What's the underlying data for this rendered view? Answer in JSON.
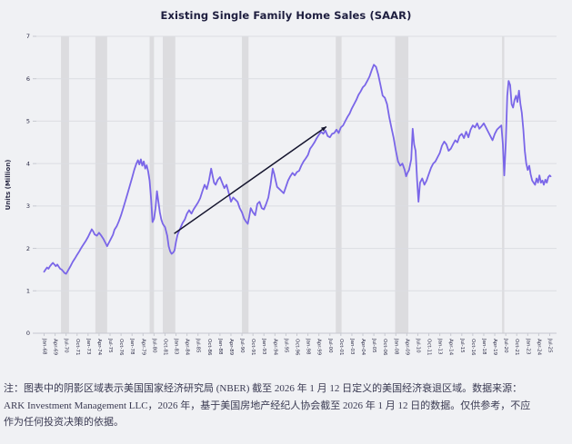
{
  "page": {
    "background": "#f0f1f4"
  },
  "chart": {
    "title": "Existing Single Family Home Sales (SAAR)"
  },
  "note": {
    "line1": "注：图表中的阴影区域表示美国国家经济研究局 (NBER) 截至 2026 年 1 月 12 日定义的美国经济衰退区域。数据来源：",
    "line2": "ARK Investment Management LLC，2026 年，基于美国房地产经纪人协会截至 2026 年 1 月 12 日的数据。仅供参考，不应",
    "line3": "作为任何投资决策的依据。"
  },
  "chart_data": {
    "type": "line",
    "title": "Existing Single Family Home Sales (SAAR)",
    "xlabel": "",
    "ylabel": "Units (Million)",
    "ylim": [
      0,
      7
    ],
    "y_ticks": [
      0,
      1,
      2,
      3,
      4,
      5,
      6,
      7
    ],
    "x_range_years": [
      1968.0,
      2025.5
    ],
    "x_tick_interval_months": 15,
    "x_tick_labels": [
      "Jan-68",
      "Apr-69",
      "Jul-70",
      "Oct-71",
      "Jan-73",
      "Apr-74",
      "Jul-75",
      "Oct-76",
      "Jan-78",
      "Apr-79",
      "Jul-80",
      "Oct-81",
      "Jan-83",
      "Apr-84",
      "Jul-85",
      "Oct-86",
      "Jan-88",
      "Apr-89",
      "Jul-90",
      "Oct-91",
      "Jan-93",
      "Apr-94",
      "Jul-95",
      "Oct-96",
      "Jan-98",
      "Apr-99",
      "Jul-00",
      "Oct-01",
      "Jan-03",
      "Apr-04",
      "Jul-05",
      "Oct-06",
      "Jan-08",
      "Apr-09",
      "Jul-10",
      "Oct-11",
      "Jan-13",
      "Apr-14",
      "Jul-15",
      "Oct-16",
      "Jan-18",
      "Apr-19",
      "Jul-20",
      "Oct-21",
      "Jan-23",
      "Apr-24",
      "Jul-25"
    ],
    "grid": "horizontal-only",
    "legend": "none",
    "colors": {
      "line": "#7a66e8",
      "recession_band": "#dcdcdf",
      "gridline": "#dbdde2",
      "axis_line": "#c6c8d0",
      "tick_label": "#2a2a45",
      "trend_line": "#15152e",
      "title": "#1d1d3e"
    },
    "recession_bands": {
      "meaning": "NBER-defined U.S. recessions (shaded)",
      "intervals_years": [
        [
          1969.92,
          1970.83
        ],
        [
          1973.83,
          1975.17
        ],
        [
          1980.0,
          1980.5
        ],
        [
          1981.5,
          1982.92
        ],
        [
          1990.5,
          1991.25
        ],
        [
          2001.17,
          2001.83
        ],
        [
          2007.92,
          2009.42
        ],
        [
          2020.08,
          2020.33
        ]
      ]
    },
    "trend_line": {
      "from": [
        1982.8,
        2.35
      ],
      "to": [
        2000.1,
        4.87
      ],
      "arrowhead": true
    },
    "series": [
      {
        "name": "Existing Single Family Home Sales (SAAR), millions of units",
        "points": [
          [
            1968.0,
            1.45
          ],
          [
            1968.17,
            1.5
          ],
          [
            1968.33,
            1.55
          ],
          [
            1968.5,
            1.52
          ],
          [
            1968.67,
            1.58
          ],
          [
            1968.83,
            1.62
          ],
          [
            1969.0,
            1.66
          ],
          [
            1969.17,
            1.62
          ],
          [
            1969.33,
            1.58
          ],
          [
            1969.5,
            1.62
          ],
          [
            1969.67,
            1.57
          ],
          [
            1969.83,
            1.52
          ],
          [
            1970.0,
            1.5
          ],
          [
            1970.17,
            1.46
          ],
          [
            1970.33,
            1.42
          ],
          [
            1970.5,
            1.4
          ],
          [
            1970.67,
            1.46
          ],
          [
            1970.83,
            1.52
          ],
          [
            1971.0,
            1.58
          ],
          [
            1971.25,
            1.68
          ],
          [
            1971.5,
            1.76
          ],
          [
            1971.75,
            1.85
          ],
          [
            1972.0,
            1.93
          ],
          [
            1972.25,
            2.02
          ],
          [
            1972.5,
            2.1
          ],
          [
            1972.75,
            2.18
          ],
          [
            1973.0,
            2.27
          ],
          [
            1973.25,
            2.38
          ],
          [
            1973.42,
            2.45
          ],
          [
            1973.58,
            2.4
          ],
          [
            1973.75,
            2.33
          ],
          [
            1974.0,
            2.3
          ],
          [
            1974.25,
            2.37
          ],
          [
            1974.5,
            2.3
          ],
          [
            1974.75,
            2.22
          ],
          [
            1975.0,
            2.12
          ],
          [
            1975.17,
            2.05
          ],
          [
            1975.33,
            2.12
          ],
          [
            1975.58,
            2.22
          ],
          [
            1975.83,
            2.32
          ],
          [
            1976.0,
            2.44
          ],
          [
            1976.25,
            2.52
          ],
          [
            1976.5,
            2.64
          ],
          [
            1976.75,
            2.78
          ],
          [
            1977.0,
            2.95
          ],
          [
            1977.25,
            3.12
          ],
          [
            1977.5,
            3.3
          ],
          [
            1977.75,
            3.48
          ],
          [
            1978.0,
            3.66
          ],
          [
            1978.25,
            3.85
          ],
          [
            1978.5,
            4.0
          ],
          [
            1978.67,
            4.08
          ],
          [
            1978.83,
            3.98
          ],
          [
            1979.0,
            4.1
          ],
          [
            1979.17,
            3.95
          ],
          [
            1979.33,
            4.05
          ],
          [
            1979.5,
            3.88
          ],
          [
            1979.67,
            3.96
          ],
          [
            1979.83,
            3.82
          ],
          [
            1980.0,
            3.6
          ],
          [
            1980.17,
            3.15
          ],
          [
            1980.33,
            2.62
          ],
          [
            1980.5,
            2.7
          ],
          [
            1980.67,
            2.95
          ],
          [
            1980.83,
            3.35
          ],
          [
            1981.0,
            3.1
          ],
          [
            1981.17,
            2.85
          ],
          [
            1981.33,
            2.68
          ],
          [
            1981.5,
            2.58
          ],
          [
            1981.75,
            2.5
          ],
          [
            1982.0,
            2.3
          ],
          [
            1982.17,
            2.05
          ],
          [
            1982.33,
            1.93
          ],
          [
            1982.5,
            1.87
          ],
          [
            1982.67,
            1.9
          ],
          [
            1982.83,
            1.95
          ],
          [
            1983.0,
            2.15
          ],
          [
            1983.17,
            2.32
          ],
          [
            1983.33,
            2.4
          ],
          [
            1983.5,
            2.48
          ],
          [
            1983.75,
            2.6
          ],
          [
            1984.0,
            2.68
          ],
          [
            1984.25,
            2.82
          ],
          [
            1984.5,
            2.9
          ],
          [
            1984.75,
            2.82
          ],
          [
            1985.0,
            2.92
          ],
          [
            1985.25,
            3.0
          ],
          [
            1985.5,
            3.08
          ],
          [
            1985.75,
            3.18
          ],
          [
            1986.0,
            3.35
          ],
          [
            1986.25,
            3.5
          ],
          [
            1986.5,
            3.4
          ],
          [
            1986.75,
            3.6
          ],
          [
            1987.0,
            3.88
          ],
          [
            1987.17,
            3.7
          ],
          [
            1987.33,
            3.55
          ],
          [
            1987.5,
            3.5
          ],
          [
            1987.75,
            3.62
          ],
          [
            1988.0,
            3.68
          ],
          [
            1988.25,
            3.55
          ],
          [
            1988.5,
            3.42
          ],
          [
            1988.75,
            3.5
          ],
          [
            1989.0,
            3.3
          ],
          [
            1989.25,
            3.1
          ],
          [
            1989.5,
            3.2
          ],
          [
            1989.75,
            3.15
          ],
          [
            1990.0,
            3.1
          ],
          [
            1990.25,
            2.95
          ],
          [
            1990.5,
            2.85
          ],
          [
            1990.75,
            2.7
          ],
          [
            1991.0,
            2.62
          ],
          [
            1991.17,
            2.58
          ],
          [
            1991.33,
            2.75
          ],
          [
            1991.5,
            2.95
          ],
          [
            1991.75,
            2.85
          ],
          [
            1992.0,
            2.78
          ],
          [
            1992.25,
            3.05
          ],
          [
            1992.5,
            3.1
          ],
          [
            1992.75,
            2.95
          ],
          [
            1993.0,
            2.92
          ],
          [
            1993.25,
            3.05
          ],
          [
            1993.5,
            3.2
          ],
          [
            1993.75,
            3.5
          ],
          [
            1994.0,
            3.88
          ],
          [
            1994.17,
            3.75
          ],
          [
            1994.33,
            3.6
          ],
          [
            1994.5,
            3.45
          ],
          [
            1994.75,
            3.4
          ],
          [
            1995.0,
            3.35
          ],
          [
            1995.25,
            3.3
          ],
          [
            1995.5,
            3.45
          ],
          [
            1995.75,
            3.6
          ],
          [
            1996.0,
            3.7
          ],
          [
            1996.25,
            3.78
          ],
          [
            1996.5,
            3.72
          ],
          [
            1996.75,
            3.8
          ],
          [
            1997.0,
            3.83
          ],
          [
            1997.25,
            3.95
          ],
          [
            1997.5,
            4.05
          ],
          [
            1997.75,
            4.12
          ],
          [
            1998.0,
            4.2
          ],
          [
            1998.25,
            4.35
          ],
          [
            1998.5,
            4.42
          ],
          [
            1998.75,
            4.5
          ],
          [
            1999.0,
            4.6
          ],
          [
            1999.25,
            4.68
          ],
          [
            1999.5,
            4.75
          ],
          [
            1999.75,
            4.7
          ],
          [
            2000.0,
            4.78
          ],
          [
            2000.25,
            4.65
          ],
          [
            2000.5,
            4.62
          ],
          [
            2000.75,
            4.7
          ],
          [
            2001.0,
            4.72
          ],
          [
            2001.25,
            4.8
          ],
          [
            2001.5,
            4.72
          ],
          [
            2001.75,
            4.85
          ],
          [
            2002.0,
            4.9
          ],
          [
            2002.25,
            5.0
          ],
          [
            2002.5,
            5.1
          ],
          [
            2002.75,
            5.18
          ],
          [
            2003.0,
            5.3
          ],
          [
            2003.25,
            5.4
          ],
          [
            2003.5,
            5.5
          ],
          [
            2003.75,
            5.62
          ],
          [
            2004.0,
            5.7
          ],
          [
            2004.25,
            5.8
          ],
          [
            2004.5,
            5.85
          ],
          [
            2004.75,
            5.95
          ],
          [
            2005.0,
            6.05
          ],
          [
            2005.25,
            6.2
          ],
          [
            2005.5,
            6.33
          ],
          [
            2005.75,
            6.28
          ],
          [
            2006.0,
            6.1
          ],
          [
            2006.25,
            5.85
          ],
          [
            2006.5,
            5.6
          ],
          [
            2006.75,
            5.55
          ],
          [
            2007.0,
            5.4
          ],
          [
            2007.25,
            5.1
          ],
          [
            2007.5,
            4.85
          ],
          [
            2007.75,
            4.6
          ],
          [
            2008.0,
            4.3
          ],
          [
            2008.25,
            4.05
          ],
          [
            2008.5,
            3.95
          ],
          [
            2008.75,
            4.0
          ],
          [
            2009.0,
            3.85
          ],
          [
            2009.17,
            3.7
          ],
          [
            2009.33,
            3.78
          ],
          [
            2009.5,
            3.85
          ],
          [
            2009.75,
            4.1
          ],
          [
            2009.92,
            4.82
          ],
          [
            2010.08,
            4.45
          ],
          [
            2010.25,
            4.3
          ],
          [
            2010.42,
            3.6
          ],
          [
            2010.58,
            3.1
          ],
          [
            2010.75,
            3.55
          ],
          [
            2011.0,
            3.65
          ],
          [
            2011.25,
            3.5
          ],
          [
            2011.5,
            3.6
          ],
          [
            2011.75,
            3.75
          ],
          [
            2012.0,
            3.9
          ],
          [
            2012.25,
            4.0
          ],
          [
            2012.5,
            4.05
          ],
          [
            2012.75,
            4.15
          ],
          [
            2013.0,
            4.25
          ],
          [
            2013.25,
            4.42
          ],
          [
            2013.5,
            4.52
          ],
          [
            2013.75,
            4.45
          ],
          [
            2014.0,
            4.3
          ],
          [
            2014.25,
            4.35
          ],
          [
            2014.5,
            4.45
          ],
          [
            2014.75,
            4.55
          ],
          [
            2015.0,
            4.5
          ],
          [
            2015.25,
            4.65
          ],
          [
            2015.5,
            4.7
          ],
          [
            2015.75,
            4.6
          ],
          [
            2016.0,
            4.75
          ],
          [
            2016.25,
            4.62
          ],
          [
            2016.5,
            4.8
          ],
          [
            2016.75,
            4.9
          ],
          [
            2017.0,
            4.85
          ],
          [
            2017.25,
            4.95
          ],
          [
            2017.5,
            4.82
          ],
          [
            2017.75,
            4.88
          ],
          [
            2018.0,
            4.95
          ],
          [
            2018.25,
            4.85
          ],
          [
            2018.5,
            4.75
          ],
          [
            2018.75,
            4.65
          ],
          [
            2019.0,
            4.55
          ],
          [
            2019.25,
            4.7
          ],
          [
            2019.5,
            4.8
          ],
          [
            2019.75,
            4.85
          ],
          [
            2020.0,
            4.9
          ],
          [
            2020.17,
            4.45
          ],
          [
            2020.33,
            3.72
          ],
          [
            2020.5,
            4.5
          ],
          [
            2020.67,
            5.6
          ],
          [
            2020.83,
            5.95
          ],
          [
            2021.0,
            5.85
          ],
          [
            2021.17,
            5.4
          ],
          [
            2021.33,
            5.32
          ],
          [
            2021.5,
            5.5
          ],
          [
            2021.67,
            5.6
          ],
          [
            2021.83,
            5.45
          ],
          [
            2022.0,
            5.72
          ],
          [
            2022.17,
            5.4
          ],
          [
            2022.33,
            5.2
          ],
          [
            2022.5,
            4.8
          ],
          [
            2022.67,
            4.3
          ],
          [
            2022.83,
            4.0
          ],
          [
            2023.0,
            3.85
          ],
          [
            2023.17,
            3.95
          ],
          [
            2023.33,
            3.75
          ],
          [
            2023.5,
            3.6
          ],
          [
            2023.67,
            3.55
          ],
          [
            2023.83,
            3.5
          ],
          [
            2024.0,
            3.65
          ],
          [
            2024.17,
            3.55
          ],
          [
            2024.33,
            3.72
          ],
          [
            2024.5,
            3.55
          ],
          [
            2024.67,
            3.6
          ],
          [
            2024.83,
            3.5
          ],
          [
            2025.0,
            3.62
          ],
          [
            2025.17,
            3.55
          ],
          [
            2025.33,
            3.68
          ],
          [
            2025.5,
            3.72
          ],
          [
            2025.6,
            3.7
          ]
        ]
      }
    ]
  }
}
